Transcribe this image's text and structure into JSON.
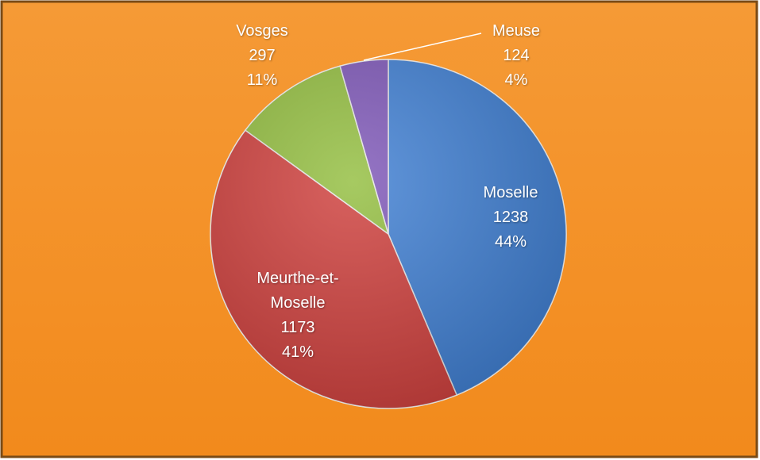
{
  "chart_data": {
    "type": "pie",
    "categories": [
      "Moselle",
      "Meurthe-et-Moselle",
      "Vosges",
      "Meuse"
    ],
    "values": [
      1238,
      1173,
      297,
      124
    ],
    "percent_labels": [
      "44%",
      "41%",
      "11%",
      "4%"
    ],
    "colors": [
      "#3f7fd3",
      "#cf3f3c",
      "#93be3f",
      "#7e57b8"
    ]
  }
}
